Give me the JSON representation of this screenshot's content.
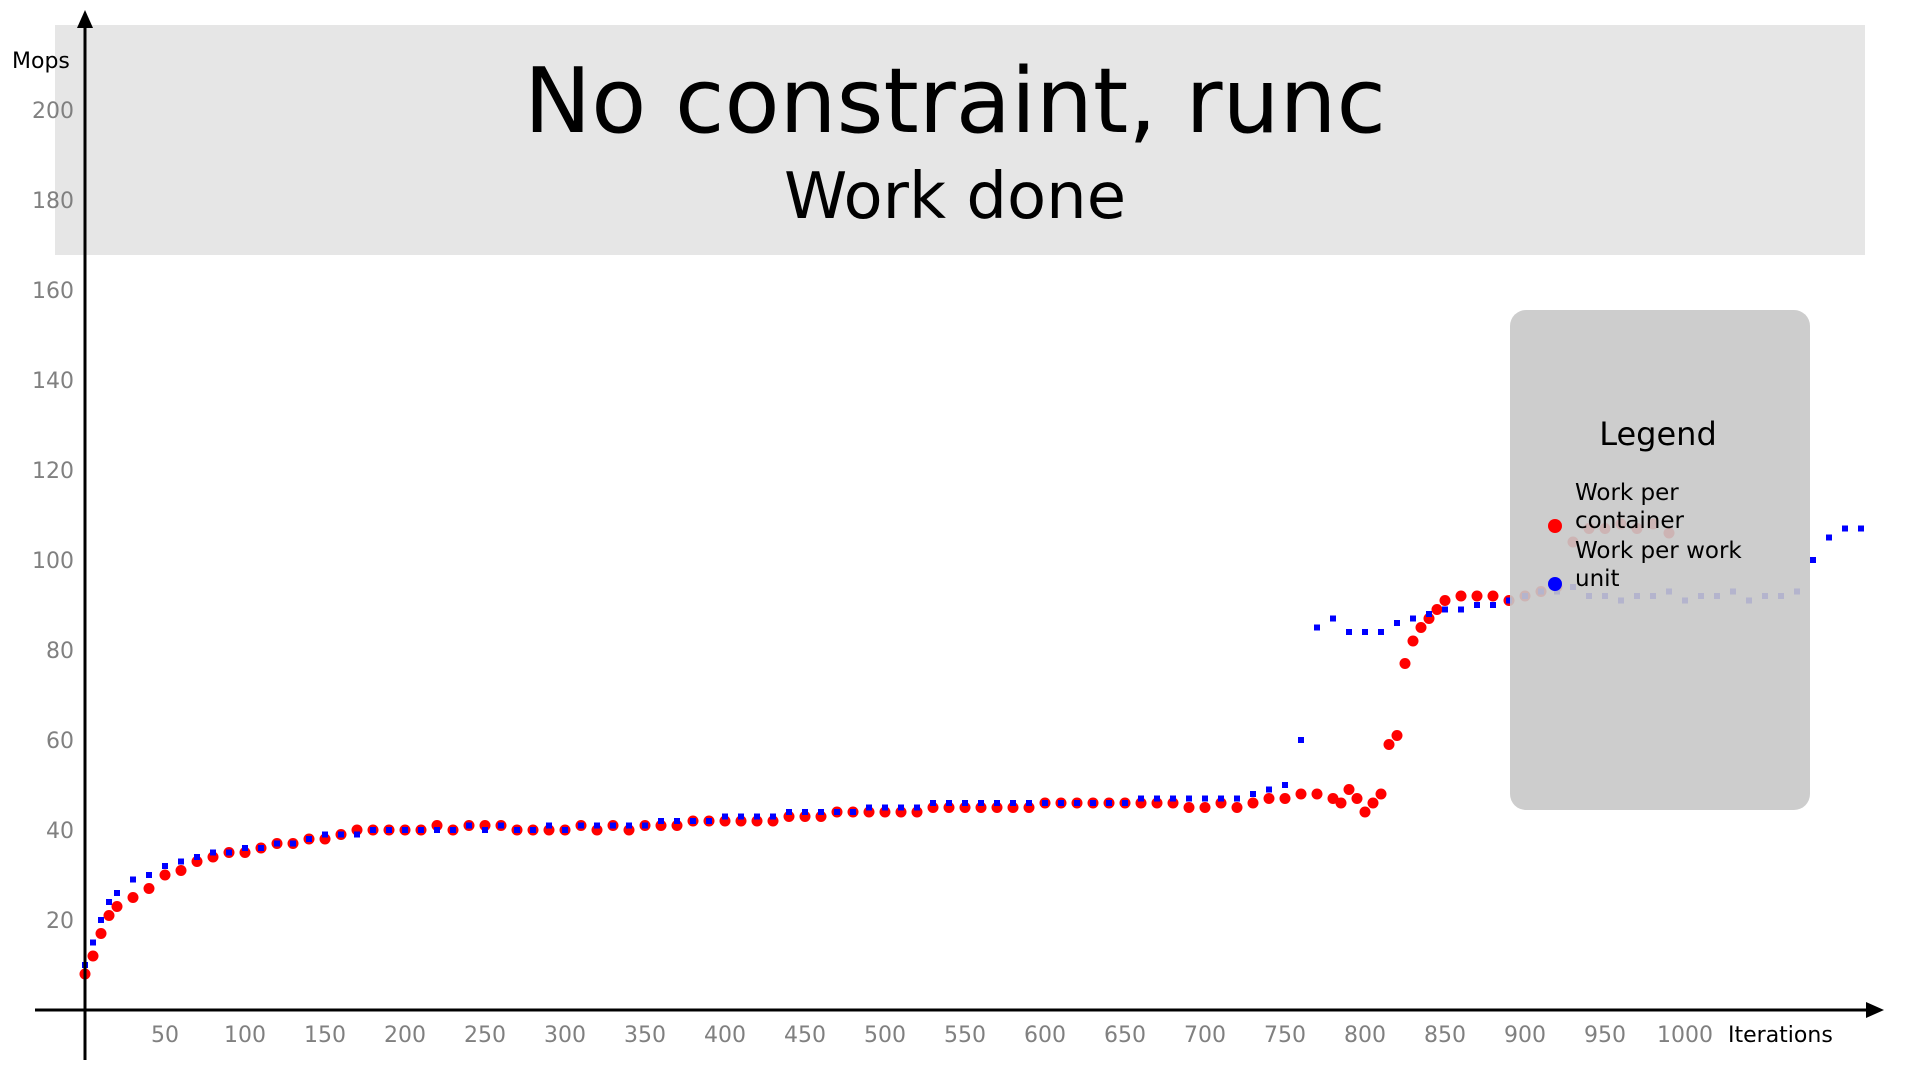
{
  "chart_data": {
    "type": "scatter",
    "title": "No constraint, runc",
    "subtitle": "Work done",
    "xlabel": "Iterations",
    "ylabel": "Mops",
    "xlim": [
      0,
      1120
    ],
    "ylim": [
      0,
      215
    ],
    "xticks": [
      50,
      100,
      150,
      200,
      250,
      300,
      350,
      400,
      450,
      500,
      550,
      600,
      650,
      700,
      750,
      800,
      850,
      900,
      950,
      1000
    ],
    "yticks": [
      20,
      40,
      60,
      80,
      100,
      120,
      140,
      160,
      180,
      200
    ],
    "grid": false,
    "legend": {
      "title": "Legend",
      "placement": "right",
      "entries": [
        {
          "label": "Work per container",
          "color": "#ff0000"
        },
        {
          "label": "Work per work unit",
          "color": "#0000ff"
        }
      ]
    },
    "series": [
      {
        "name": "Work per container",
        "color": "#ff0000",
        "marker": "circle",
        "x": [
          0,
          5,
          10,
          15,
          20,
          30,
          40,
          50,
          60,
          70,
          80,
          90,
          100,
          110,
          120,
          130,
          140,
          150,
          160,
          170,
          180,
          190,
          200,
          210,
          220,
          230,
          240,
          250,
          260,
          270,
          280,
          290,
          300,
          310,
          320,
          330,
          340,
          350,
          360,
          370,
          380,
          390,
          400,
          410,
          420,
          430,
          440,
          450,
          460,
          470,
          480,
          490,
          500,
          510,
          520,
          530,
          540,
          550,
          560,
          570,
          580,
          590,
          600,
          610,
          620,
          630,
          640,
          650,
          660,
          670,
          680,
          690,
          700,
          710,
          720,
          730,
          740,
          750,
          760,
          770,
          780,
          785,
          790,
          795,
          800,
          805,
          810,
          815,
          820,
          825,
          830,
          835,
          840,
          845,
          850,
          860,
          870,
          880,
          890,
          900,
          910,
          920,
          930,
          940,
          950,
          960,
          970,
          980,
          990
        ],
        "y": [
          8,
          12,
          17,
          21,
          23,
          25,
          27,
          30,
          31,
          33,
          34,
          35,
          35,
          36,
          37,
          37,
          38,
          38,
          39,
          40,
          40,
          40,
          40,
          40,
          41,
          40,
          41,
          41,
          41,
          40,
          40,
          40,
          40,
          41,
          40,
          41,
          40,
          41,
          41,
          41,
          42,
          42,
          42,
          42,
          42,
          42,
          43,
          43,
          43,
          44,
          44,
          44,
          44,
          44,
          44,
          45,
          45,
          45,
          45,
          45,
          45,
          45,
          46,
          46,
          46,
          46,
          46,
          46,
          46,
          46,
          46,
          45,
          45,
          46,
          45,
          46,
          47,
          47,
          48,
          48,
          47,
          46,
          49,
          47,
          44,
          46,
          48,
          59,
          61,
          77,
          82,
          85,
          87,
          89,
          91,
          92,
          92,
          92,
          91,
          92,
          93,
          94,
          104,
          107,
          107,
          108,
          107,
          108,
          106
        ]
      },
      {
        "name": "Work per work unit",
        "color": "#0000ff",
        "marker": "square",
        "x": [
          0,
          5,
          10,
          15,
          20,
          30,
          40,
          50,
          60,
          70,
          80,
          90,
          100,
          110,
          120,
          130,
          140,
          150,
          160,
          170,
          180,
          190,
          200,
          210,
          220,
          230,
          240,
          250,
          260,
          270,
          280,
          290,
          300,
          310,
          320,
          330,
          340,
          350,
          360,
          370,
          380,
          390,
          400,
          410,
          420,
          430,
          440,
          450,
          460,
          470,
          480,
          490,
          500,
          510,
          520,
          530,
          540,
          550,
          560,
          570,
          580,
          590,
          600,
          610,
          620,
          630,
          640,
          650,
          660,
          670,
          680,
          690,
          700,
          710,
          720,
          730,
          740,
          750,
          760,
          770,
          780,
          790,
          800,
          810,
          820,
          830,
          840,
          850,
          860,
          870,
          880,
          890,
          900,
          910,
          920,
          930,
          940,
          950,
          960,
          970,
          980,
          990,
          1000,
          1010,
          1020,
          1030,
          1040,
          1050,
          1060,
          1070,
          1080,
          1090,
          1100,
          1110
        ],
        "y": [
          10,
          15,
          20,
          24,
          26,
          29,
          30,
          32,
          33,
          34,
          35,
          35,
          36,
          36,
          37,
          37,
          38,
          39,
          39,
          39,
          40,
          40,
          40,
          40,
          40,
          40,
          41,
          40,
          41,
          40,
          40,
          41,
          40,
          41,
          41,
          41,
          41,
          41,
          42,
          42,
          42,
          42,
          43,
          43,
          43,
          43,
          44,
          44,
          44,
          44,
          44,
          45,
          45,
          45,
          45,
          46,
          46,
          46,
          46,
          46,
          46,
          46,
          46,
          46,
          46,
          46,
          46,
          46,
          47,
          47,
          47,
          47,
          47,
          47,
          47,
          48,
          49,
          50,
          60,
          85,
          87,
          84,
          84,
          84,
          86,
          87,
          88,
          89,
          89,
          90,
          90,
          91,
          92,
          93,
          93,
          94,
          92,
          92,
          91,
          92,
          92,
          93,
          91,
          92,
          92,
          93,
          91,
          92,
          92,
          93,
          100,
          105,
          107,
          107
        ]
      }
    ]
  }
}
